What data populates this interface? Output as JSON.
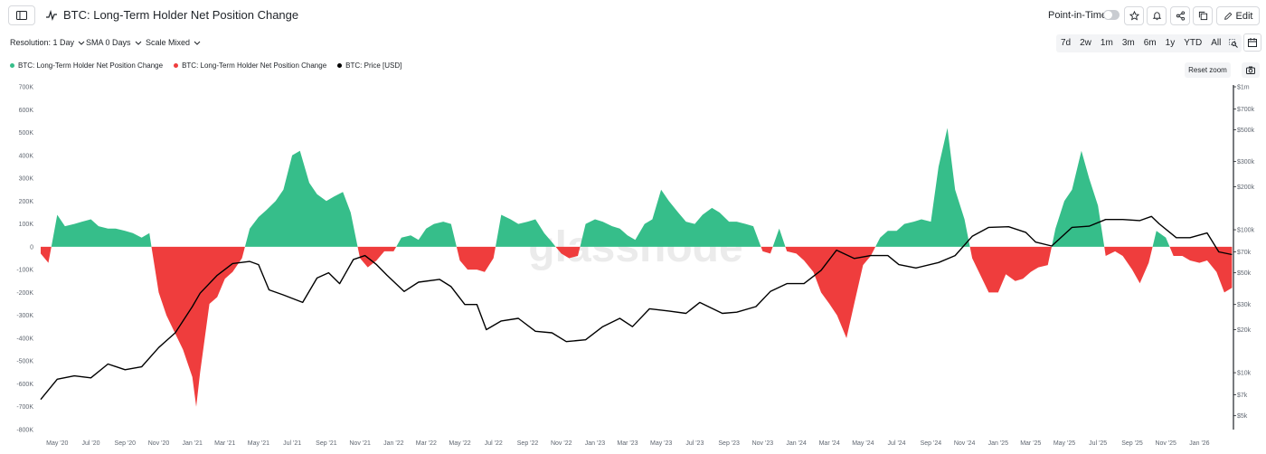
{
  "header": {
    "title": "BTC: Long-Term Holder Net Position Change",
    "point_in_time_label": "Point-in-Time",
    "edit_label": "Edit"
  },
  "controls": {
    "resolution": "Resolution: 1 Day",
    "sma": "SMA 0 Days",
    "scale": "Scale Mixed"
  },
  "ranges": [
    "7d",
    "2w",
    "1m",
    "3m",
    "6m",
    "1y",
    "YTD",
    "All"
  ],
  "reset_zoom_label": "Reset zoom",
  "watermark": "glassnode",
  "colors": {
    "positive": "#36be8a",
    "negative": "#ef3d3d",
    "price": "#000000",
    "accent": "#1f2328"
  },
  "chart_data": {
    "type": "area",
    "title": "BTC: Long-Term Holder Net Position Change",
    "legend": [
      {
        "name": "BTC: Long-Term Holder Net Position Change",
        "color": "#36be8a"
      },
      {
        "name": "BTC: Long-Term Holder Net Position Change",
        "color": "#ef3d3d"
      },
      {
        "name": "BTC: Price [USD]",
        "color": "#000000"
      }
    ],
    "legend_placement": "top-left",
    "x_range": [
      "2020-04-01",
      "2026-03-02"
    ],
    "x_tick_labels": [
      "May '20",
      "Jul '20",
      "Sep '20",
      "Nov '20",
      "Jan '21",
      "Mar '21",
      "May '21",
      "Jul '21",
      "Sep '21",
      "Nov '21",
      "Jan '22",
      "Mar '22",
      "May '22",
      "Jul '22",
      "Sep '22",
      "Nov '22",
      "Jan '23",
      "Mar '23",
      "May '23",
      "Jul '23",
      "Sep '23",
      "Nov '23",
      "Jan '24",
      "Mar '24",
      "May '24",
      "Jul '24",
      "Sep '24",
      "Nov '24",
      "Jan '25",
      "Mar '25",
      "May '25",
      "Jul '25",
      "Sep '25",
      "Nov '25",
      "Jan '26"
    ],
    "y_left": {
      "ylim": [
        -800000,
        700000
      ],
      "tick_values": [
        700000,
        600000,
        500000,
        400000,
        300000,
        200000,
        100000,
        0,
        -100000,
        -200000,
        -300000,
        -400000,
        -500000,
        -600000,
        -700000,
        -800000
      ],
      "tick_labels": [
        "700K",
        "600K",
        "500K",
        "400K",
        "300K",
        "200K",
        "100K",
        "0",
        "-100K",
        "-200K",
        "-300K",
        "-400K",
        "-500K",
        "-600K",
        "-700K",
        "-800K"
      ]
    },
    "y_right": {
      "scale": "log",
      "ylim": [
        4000,
        1000000
      ],
      "tick_values": [
        1000000,
        700000,
        500000,
        300000,
        200000,
        100000,
        70000,
        50000,
        30000,
        20000,
        10000,
        7000,
        5000
      ],
      "tick_labels": [
        "$1m",
        "$700k",
        "$500k",
        "$300k",
        "$200k",
        "$100k",
        "$70k",
        "$50k",
        "$30k",
        "$20k",
        "$10k",
        "$7k",
        "$5k"
      ]
    },
    "grid": false,
    "net_position_change": {
      "x": [
        "2020-04-01",
        "2020-04-15",
        "2020-05-01",
        "2020-05-15",
        "2020-06-01",
        "2020-06-15",
        "2020-07-01",
        "2020-07-15",
        "2020-08-01",
        "2020-08-15",
        "2020-09-01",
        "2020-09-15",
        "2020-10-01",
        "2020-10-15",
        "2020-11-01",
        "2020-11-15",
        "2020-12-01",
        "2020-12-15",
        "2021-01-01",
        "2021-01-08",
        "2021-01-15",
        "2021-02-01",
        "2021-02-15",
        "2021-03-01",
        "2021-03-15",
        "2021-04-01",
        "2021-04-15",
        "2021-05-01",
        "2021-05-15",
        "2021-06-01",
        "2021-06-15",
        "2021-07-01",
        "2021-07-15",
        "2021-08-01",
        "2021-08-15",
        "2021-09-01",
        "2021-09-15",
        "2021-10-01",
        "2021-10-15",
        "2021-11-01",
        "2021-11-15",
        "2021-12-01",
        "2021-12-15",
        "2022-01-01",
        "2022-01-15",
        "2022-02-01",
        "2022-02-15",
        "2022-03-01",
        "2022-03-15",
        "2022-04-01",
        "2022-04-15",
        "2022-05-01",
        "2022-05-15",
        "2022-06-01",
        "2022-06-15",
        "2022-07-01",
        "2022-07-15",
        "2022-08-01",
        "2022-08-15",
        "2022-09-01",
        "2022-09-15",
        "2022-10-01",
        "2022-10-15",
        "2022-11-01",
        "2022-11-15",
        "2022-12-01",
        "2022-12-15",
        "2023-01-01",
        "2023-01-15",
        "2023-02-01",
        "2023-02-15",
        "2023-03-01",
        "2023-03-15",
        "2023-04-01",
        "2023-04-15",
        "2023-05-01",
        "2023-05-15",
        "2023-06-01",
        "2023-06-15",
        "2023-07-01",
        "2023-07-15",
        "2023-08-01",
        "2023-08-15",
        "2023-09-01",
        "2023-09-15",
        "2023-10-01",
        "2023-10-15",
        "2023-11-01",
        "2023-11-15",
        "2023-12-01",
        "2023-12-15",
        "2024-01-01",
        "2024-01-15",
        "2024-02-01",
        "2024-02-15",
        "2024-03-01",
        "2024-03-15",
        "2024-04-01",
        "2024-04-15",
        "2024-05-01",
        "2024-05-15",
        "2024-06-01",
        "2024-06-15",
        "2024-07-01",
        "2024-07-15",
        "2024-08-01",
        "2024-08-15",
        "2024-09-01",
        "2024-09-15",
        "2024-10-01",
        "2024-10-15",
        "2024-11-01",
        "2024-11-15",
        "2024-12-01",
        "2024-12-15",
        "2025-01-01",
        "2025-01-15",
        "2025-02-01",
        "2025-02-15",
        "2025-03-01",
        "2025-03-15",
        "2025-04-01",
        "2025-04-15",
        "2025-05-01",
        "2025-05-15",
        "2025-06-01",
        "2025-06-15",
        "2025-07-01",
        "2025-07-15",
        "2025-08-01",
        "2025-08-15",
        "2025-09-01",
        "2025-09-15",
        "2025-10-01",
        "2025-10-15",
        "2025-11-01",
        "2025-11-15",
        "2025-12-01",
        "2025-12-15",
        "2026-01-01",
        "2026-01-15",
        "2026-02-01",
        "2026-02-15",
        "2026-03-01"
      ],
      "values": [
        -30000,
        -70000,
        140000,
        90000,
        100000,
        110000,
        120000,
        90000,
        80000,
        80000,
        70000,
        60000,
        40000,
        60000,
        -200000,
        -300000,
        -380000,
        -450000,
        -570000,
        -700000,
        -550000,
        -250000,
        -220000,
        -140000,
        -110000,
        -50000,
        80000,
        130000,
        160000,
        200000,
        250000,
        400000,
        420000,
        280000,
        230000,
        200000,
        220000,
        240000,
        150000,
        -50000,
        -90000,
        -60000,
        -20000,
        -20000,
        40000,
        50000,
        30000,
        80000,
        100000,
        110000,
        100000,
        -60000,
        -100000,
        -100000,
        -110000,
        -50000,
        140000,
        120000,
        100000,
        110000,
        120000,
        60000,
        20000,
        -30000,
        -50000,
        -40000,
        100000,
        120000,
        110000,
        90000,
        80000,
        50000,
        30000,
        100000,
        120000,
        250000,
        200000,
        150000,
        110000,
        100000,
        140000,
        170000,
        150000,
        110000,
        110000,
        100000,
        90000,
        -20000,
        -30000,
        80000,
        -20000,
        -30000,
        -60000,
        -110000,
        -200000,
        -250000,
        -300000,
        -400000,
        -250000,
        -80000,
        -40000,
        40000,
        70000,
        70000,
        100000,
        110000,
        120000,
        110000,
        350000,
        520000,
        250000,
        120000,
        -50000,
        -130000,
        -200000,
        -200000,
        -120000,
        -150000,
        -140000,
        -110000,
        -90000,
        -80000,
        80000,
        200000,
        250000,
        420000,
        300000,
        180000,
        -40000,
        -20000,
        -40000,
        -100000,
        -160000,
        -70000,
        70000,
        40000,
        -40000,
        -40000,
        -60000,
        -70000,
        -60000,
        -110000,
        -200000,
        -180000
      ]
    },
    "price_usd": {
      "x": [
        "2020-04-01",
        "2020-05-01",
        "2020-06-01",
        "2020-07-01",
        "2020-08-01",
        "2020-09-01",
        "2020-10-01",
        "2020-11-01",
        "2020-12-01",
        "2021-01-01",
        "2021-01-15",
        "2021-02-15",
        "2021-03-15",
        "2021-04-15",
        "2021-05-01",
        "2021-05-20",
        "2021-06-15",
        "2021-07-20",
        "2021-08-15",
        "2021-09-05",
        "2021-09-25",
        "2021-10-20",
        "2021-11-10",
        "2021-12-01",
        "2021-12-20",
        "2022-01-20",
        "2022-02-15",
        "2022-03-25",
        "2022-04-15",
        "2022-05-10",
        "2022-06-01",
        "2022-06-18",
        "2022-07-15",
        "2022-08-15",
        "2022-09-15",
        "2022-10-15",
        "2022-11-10",
        "2022-12-15",
        "2023-01-15",
        "2023-02-15",
        "2023-03-10",
        "2023-04-10",
        "2023-05-15",
        "2023-06-15",
        "2023-07-10",
        "2023-08-20",
        "2023-09-15",
        "2023-10-20",
        "2023-11-15",
        "2023-12-15",
        "2024-01-15",
        "2024-02-15",
        "2024-03-14",
        "2024-04-15",
        "2024-05-15",
        "2024-06-15",
        "2024-07-05",
        "2024-08-05",
        "2024-09-15",
        "2024-10-15",
        "2024-11-15",
        "2024-12-15",
        "2025-01-20",
        "2025-02-20",
        "2025-03-10",
        "2025-04-08",
        "2025-05-15",
        "2025-06-15",
        "2025-07-15",
        "2025-08-15",
        "2025-09-15",
        "2025-10-06",
        "2025-10-20",
        "2025-11-20",
        "2025-12-15",
        "2026-01-15",
        "2026-02-05",
        "2026-03-01"
      ],
      "values": [
        6500,
        9000,
        9500,
        9200,
        11500,
        10500,
        11000,
        15000,
        19000,
        29000,
        36000,
        48000,
        58000,
        60000,
        57000,
        38000,
        35000,
        31000,
        46000,
        50000,
        42000,
        62000,
        66000,
        57000,
        48000,
        37000,
        43000,
        45000,
        40000,
        30000,
        30000,
        20000,
        23000,
        24000,
        19500,
        19000,
        16500,
        17000,
        21000,
        24000,
        21000,
        28000,
        27000,
        26000,
        31000,
        26000,
        26500,
        29000,
        37000,
        42000,
        42000,
        52000,
        72000,
        63000,
        66000,
        66000,
        57000,
        54000,
        59000,
        66000,
        90000,
        104000,
        105000,
        96000,
        82000,
        77000,
        104000,
        106000,
        118000,
        118000,
        116000,
        124000,
        110000,
        88000,
        88000,
        95000,
        70000,
        67000
      ]
    }
  }
}
